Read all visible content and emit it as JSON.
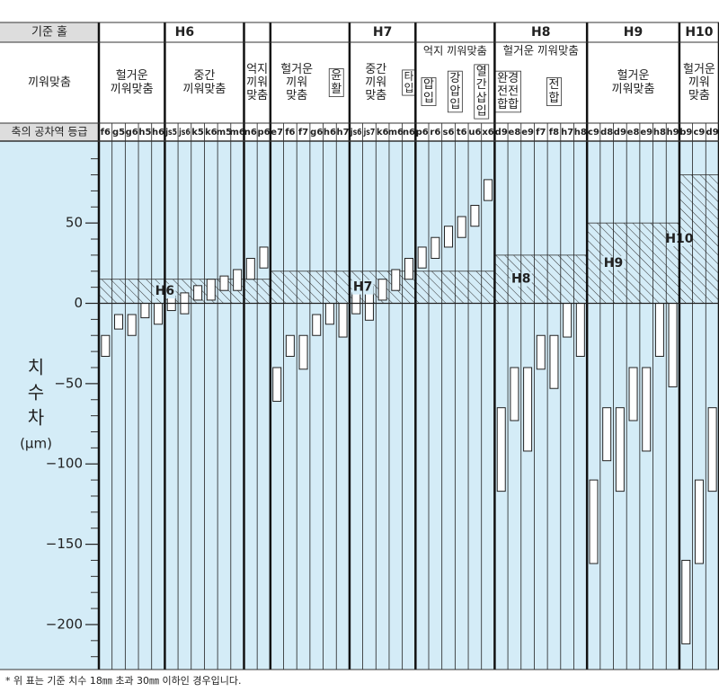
{
  "chart_data": {
    "type": "tolerance-chart",
    "header_labels": {
      "hole": "기준 홀",
      "fit": "끼워맞춤",
      "grade": "축의 공차역 등급"
    },
    "ylabel": [
      "치",
      "수",
      "차",
      "(μm)"
    ],
    "ylim": [
      -228,
      101
    ],
    "yticks": [
      {
        "value": -200,
        "label": "−200"
      },
      {
        "value": -150,
        "label": "−150"
      },
      {
        "value": -100,
        "label": "−100"
      },
      {
        "value": -50,
        "label": "−50"
      },
      0,
      50
    ],
    "minor_yticks": [
      -220,
      -210,
      -190,
      -180,
      -170,
      -160,
      -140,
      -130,
      -120,
      -110,
      -90,
      -80,
      -70,
      -60,
      -40,
      -30,
      -20,
      -10,
      10,
      20,
      30,
      40,
      60,
      70,
      80,
      90
    ],
    "groups": [
      {
        "hole": "H6",
        "band": 15,
        "fits": [
          {
            "lines": [
              "헐거운",
              "끼워맞춤"
            ],
            "span": 5
          },
          {
            "lines": [
              "중간",
              "끼워맞춤"
            ],
            "span": 6
          },
          {
            "lines": [
              "억지",
              "끼워",
              "맞춤"
            ],
            "span": 2
          }
        ],
        "grades": [
          "f6",
          "g5",
          "g6",
          "h5",
          "h6",
          "js5",
          "js6",
          "k5",
          "k6",
          "m5",
          "m6",
          "n6",
          "p6"
        ],
        "shafts": [
          [
            -20,
            -33
          ],
          [
            -7,
            -16
          ],
          [
            -7,
            -20
          ],
          [
            0,
            -9
          ],
          [
            0,
            -13
          ],
          [
            4.5,
            -4.5
          ],
          [
            6.5,
            -6.5
          ],
          [
            11,
            2
          ],
          [
            15,
            2
          ],
          [
            17,
            8
          ],
          [
            21,
            8
          ],
          [
            28,
            15
          ],
          [
            35,
            22
          ]
        ]
      },
      {
        "hole": "H7",
        "band": 20,
        "fits": [
          {
            "lines": [
              "헐거운",
              "끼워",
              "맞춤"
            ],
            "span": 6,
            "sub": [
              {
                "lines": [
                  "윤",
                  "활"
                ],
                "span": 2
              }
            ]
          },
          {
            "lines": [
              "중간",
              "끼워",
              "맞춤"
            ],
            "span": 5,
            "sub": [
              {
                "lines": [
                  "타",
                  "입"
                ],
                "span": 1
              }
            ]
          },
          {
            "lines": [
              "억지 끼워맞춤"
            ],
            "span": 6,
            "sub": [
              {
                "lines": [
                  "압",
                  "입"
                ],
                "span": 2
              },
              {
                "lines": [
                  "강",
                  "압",
                  "입"
                ],
                "span": 2
              },
              {
                "lines": [
                  "열",
                  "간",
                  "삽",
                  "입"
                ],
                "span": 2
              }
            ]
          }
        ],
        "grades": [
          "e7",
          "f6",
          "f7",
          "g6",
          "h6",
          "h7",
          "js6",
          "js7",
          "k6",
          "m6",
          "n6",
          "p6",
          "r6",
          "s6",
          "t6",
          "u6",
          "x6"
        ],
        "shafts": [
          [
            -40,
            -61
          ],
          [
            -20,
            -33
          ],
          [
            -20,
            -41
          ],
          [
            -7,
            -20
          ],
          [
            0,
            -13
          ],
          [
            0,
            -21
          ],
          [
            6.5,
            -6.5
          ],
          [
            10.5,
            -10.5
          ],
          [
            15,
            2
          ],
          [
            21,
            8
          ],
          [
            28,
            15
          ],
          [
            35,
            22
          ],
          [
            41,
            28
          ],
          [
            48,
            35
          ],
          [
            54,
            41
          ],
          [
            61,
            48
          ],
          [
            77,
            64
          ]
        ]
      },
      {
        "hole": "H8",
        "band": 30,
        "fits": [
          {
            "lines": [
              "헐거운 끼워맞춤"
            ],
            "span": 7,
            "sub": [
              {
                "lines": [
                  "완경",
                  "전전",
                  "합합"
                ],
                "span": 2
              },
              {
                "lines": [
                  "전",
                  "합"
                ],
                "span": 5
              }
            ]
          }
        ],
        "grades": [
          "d9",
          "e8",
          "e9",
          "f7",
          "f8",
          "h7",
          "h8"
        ],
        "shafts": [
          [
            -65,
            -117
          ],
          [
            -40,
            -73
          ],
          [
            -40,
            -92
          ],
          [
            -20,
            -41
          ],
          [
            -20,
            -53
          ],
          [
            0,
            -21
          ],
          [
            0,
            -33
          ]
        ]
      },
      {
        "hole": "H9",
        "band": 50,
        "fits": [
          {
            "lines": [
              "헐거운",
              "끼워맞춤"
            ],
            "span": 7
          }
        ],
        "grades": [
          "c9",
          "d8",
          "d9",
          "e8",
          "e9",
          "h8",
          "h9"
        ],
        "shafts": [
          [
            -110,
            -162
          ],
          [
            -65,
            -98
          ],
          [
            -65,
            -117
          ],
          [
            -40,
            -73
          ],
          [
            -40,
            -92
          ],
          [
            0,
            -33
          ],
          [
            0,
            -52
          ]
        ]
      },
      {
        "hole": "H10",
        "band": 80,
        "fits": [
          {
            "lines": [
              "헐거운",
              "끼워",
              "맞춤"
            ],
            "span": 3
          }
        ],
        "grades": [
          "b9",
          "c9",
          "d9"
        ],
        "shafts": [
          [
            -160,
            -212
          ],
          [
            -110,
            -162
          ],
          [
            -65,
            -117
          ]
        ]
      }
    ],
    "footnote": "* 위 표는 기준 치수 18㎜ 초과 30㎜ 이하인 경우입니다."
  }
}
